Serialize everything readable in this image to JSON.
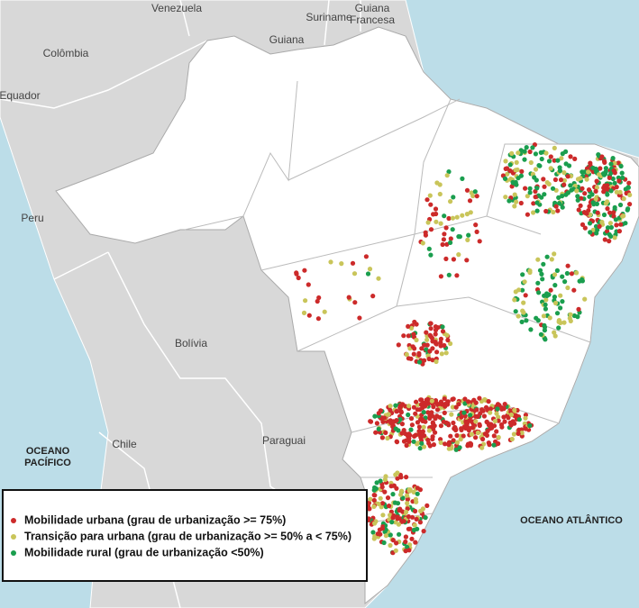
{
  "map": {
    "labels": [
      {
        "lines": [
          "Venezuela"
        ]
      },
      {
        "lines": [
          "Suriname"
        ]
      },
      {
        "lines": [
          "Guiana",
          "Francesa"
        ]
      },
      {
        "lines": [
          "Guiana"
        ]
      },
      {
        "lines": [
          "Colômbia"
        ]
      },
      {
        "lines": [
          "Equador"
        ]
      },
      {
        "lines": [
          "Peru"
        ]
      },
      {
        "lines": [
          "Bolívia"
        ]
      },
      {
        "lines": [
          "Chile"
        ]
      },
      {
        "lines": [
          "Paraguai"
        ]
      },
      {
        "lines": [
          "OCEANO",
          "PACÍFICO"
        ]
      },
      {
        "lines": [
          "OCEANO ATLÂNTICO"
        ]
      }
    ],
    "legend": {
      "items": [
        {
          "label": "Mobilidade urbana (grau de urbanização >= 75%)",
          "color": "#cc2a2a"
        },
        {
          "label": "Transição para urbana (grau de urbanização >= 50% a < 75%)",
          "color": "#c9c55a"
        },
        {
          "label": "Mobilidade rural (grau de urbanização <50%)",
          "color": "#1a9e4e"
        }
      ]
    }
  }
}
